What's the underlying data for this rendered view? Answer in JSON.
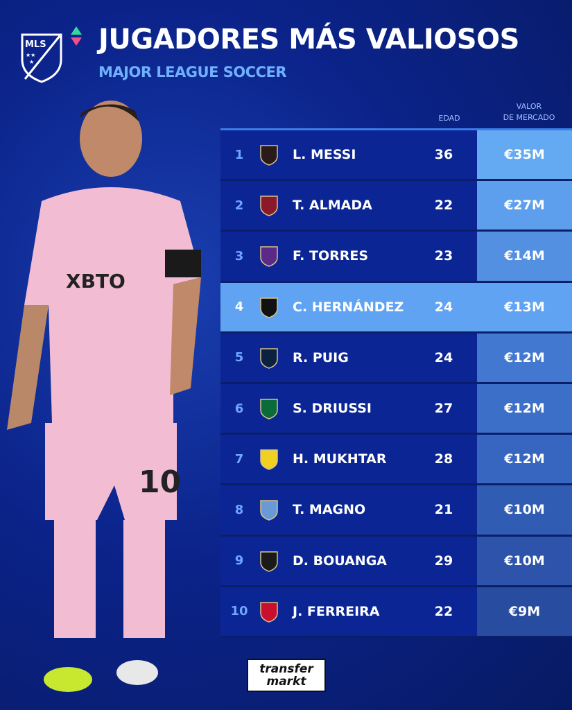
{
  "header": {
    "title": "JUGADORES MÁS VALIOSOS",
    "subtitle": "MAJOR LEAGUE SOCCER",
    "league_logo": "MLS"
  },
  "columns": {
    "age": "EDAD",
    "value_line1": "VALOR",
    "value_line2": "DE MERCADO"
  },
  "rows": [
    {
      "rank": "1",
      "name": "L. MESSI",
      "age": "36",
      "value": "€35M",
      "club_icon": "inter-miami-crest",
      "value_color": "#64aaf2"
    },
    {
      "rank": "2",
      "name": "T. ALMADA",
      "age": "22",
      "value": "€27M",
      "club_icon": "atlanta-united-crest",
      "value_color": "#5d9fec"
    },
    {
      "rank": "3",
      "name": "F. TORRES",
      "age": "23",
      "value": "€14M",
      "club_icon": "orlando-city-crest",
      "value_color": "#5390e2"
    },
    {
      "rank": "4",
      "name": "C. HERNÁNDEZ",
      "age": "24",
      "value": "€13M",
      "club_icon": "columbus-crew-crest",
      "value_color": "#5fa3f2",
      "highlight": true
    },
    {
      "rank": "5",
      "name": "R. PUIG",
      "age": "24",
      "value": "€12M",
      "club_icon": "la-galaxy-crest",
      "value_color": "#4278d0"
    },
    {
      "rank": "6",
      "name": "S. DRIUSSI",
      "age": "27",
      "value": "€12M",
      "club_icon": "austin-fc-crest",
      "value_color": "#3c6fc8"
    },
    {
      "rank": "7",
      "name": "H. MUKHTAR",
      "age": "28",
      "value": "€12M",
      "club_icon": "nashville-sc-crest",
      "value_color": "#3666bf"
    },
    {
      "rank": "8",
      "name": "T. MAGNO",
      "age": "21",
      "value": "€10M",
      "club_icon": "nycfc-crest",
      "value_color": "#315cb4"
    },
    {
      "rank": "9",
      "name": "D. BOUANGA",
      "age": "29",
      "value": "€10M",
      "club_icon": "lafc-crest",
      "value_color": "#2d54aa"
    },
    {
      "rank": "10",
      "name": "J. FERREIRA",
      "age": "22",
      "value": "€9M",
      "club_icon": "fc-dallas-crest",
      "value_color": "#284c9f"
    }
  ],
  "footer": {
    "brand_line1": "transfer",
    "brand_line2": "markt"
  },
  "crest_colors": [
    "#2a1a1a",
    "#8a1a2a",
    "#5b2a86",
    "#111111",
    "#0a2240",
    "#0b6b3a",
    "#f0d020",
    "#6a9ad6",
    "#1a1a1a",
    "#c8102e"
  ]
}
